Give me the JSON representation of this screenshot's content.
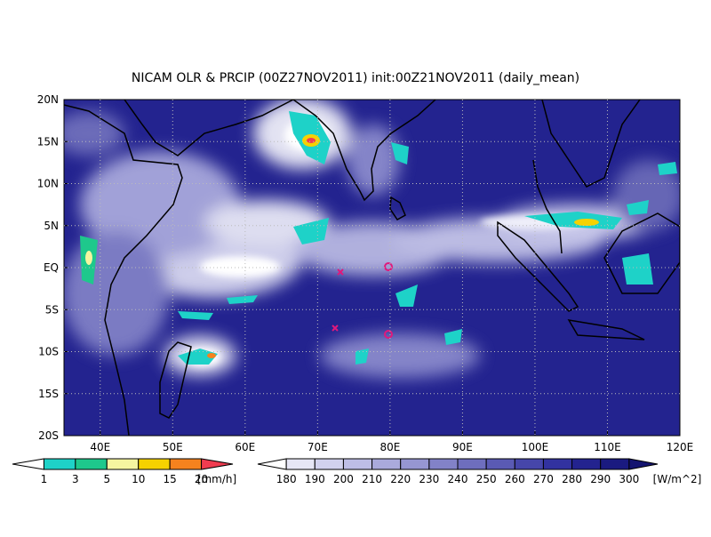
{
  "chart_data": {
    "type": "map",
    "title": "NICAM OLR & PRCIP (00Z27NOV2011) init:00Z21NOV2011 (daily_mean)",
    "xlim": [
      35,
      120
    ],
    "ylim": [
      -20,
      20
    ],
    "xticks": [
      {
        "value": 40,
        "label": "40E"
      },
      {
        "value": 50,
        "label": "50E"
      },
      {
        "value": 60,
        "label": "60E"
      },
      {
        "value": 70,
        "label": "70E"
      },
      {
        "value": 80,
        "label": "80E"
      },
      {
        "value": 90,
        "label": "90E"
      },
      {
        "value": 100,
        "label": "100E"
      },
      {
        "value": 110,
        "label": "110E"
      },
      {
        "value": 120,
        "label": "120E"
      }
    ],
    "yticks": [
      {
        "value": 20,
        "label": "20N"
      },
      {
        "value": 15,
        "label": "15N"
      },
      {
        "value": 10,
        "label": "10N"
      },
      {
        "value": 5,
        "label": "5N"
      },
      {
        "value": 0,
        "label": "EQ"
      },
      {
        "value": -5,
        "label": "5S"
      },
      {
        "value": -10,
        "label": "10S"
      },
      {
        "value": -15,
        "label": "15S"
      },
      {
        "value": -20,
        "label": "20S"
      }
    ],
    "grid": true,
    "precip_colorbar": {
      "levels": [
        1,
        3,
        5,
        10,
        15,
        20
      ],
      "unit": "[mm/h]",
      "colors": [
        "#ffffff",
        "#1ed2c8",
        "#1ec88c",
        "#f5f5a0",
        "#f5d200",
        "#f5821e",
        "#f03c50"
      ]
    },
    "olr_colorbar": {
      "levels": [
        180,
        190,
        200,
        210,
        220,
        230,
        240,
        250,
        260,
        270,
        280,
        290,
        300
      ],
      "unit": "[W/m^2]",
      "colors": [
        "#ffffff",
        "#e6e6f5",
        "#d2d2ee",
        "#bebee6",
        "#aaaadc",
        "#9696d2",
        "#8282c8",
        "#6e6ebe",
        "#5a5ab4",
        "#4646aa",
        "#3232a0",
        "#23238f",
        "#1a1a80",
        "#141470"
      ]
    }
  }
}
